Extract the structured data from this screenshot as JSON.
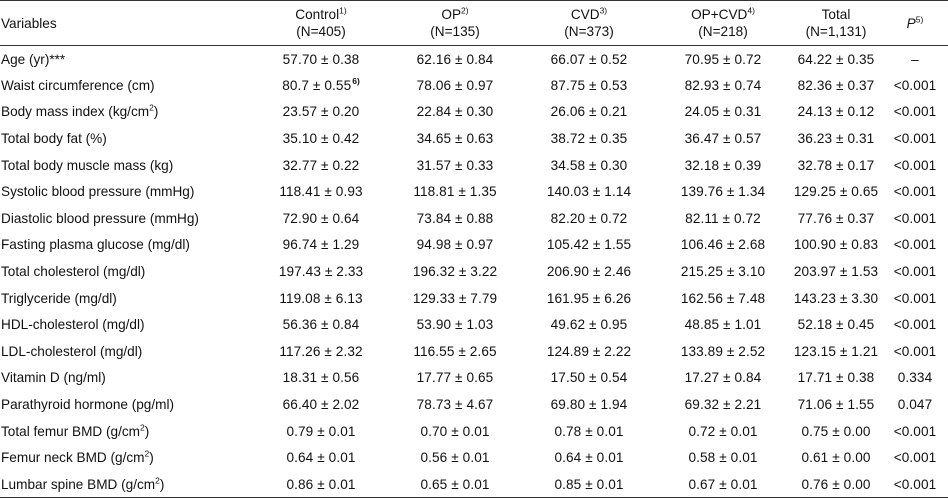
{
  "table": {
    "headers": {
      "variables": "Variables",
      "control": {
        "label": "Control",
        "sup": "1)",
        "n": "(N=405)"
      },
      "op": {
        "label": "OP",
        "sup": "2)",
        "n": "(N=135)"
      },
      "cvd": {
        "label": "CVD",
        "sup": "3)",
        "n": "(N=373)"
      },
      "opcvd": {
        "label": "OP+CVD",
        "sup": "4)",
        "n": "(N=218)"
      },
      "total": {
        "label": "Total",
        "n": "(N=1,131)"
      },
      "p": {
        "label": "P",
        "sup": "5)"
      }
    },
    "rows": [
      {
        "variable": "Age (yr)***",
        "unit_sup": "",
        "control": "57.70 ± 0.38",
        "control_fn": "",
        "op": "62.16 ± 0.84",
        "cvd": "66.07 ± 0.52",
        "opcvd": "70.95 ± 0.72",
        "total": "64.22 ± 0.35",
        "p": "–"
      },
      {
        "variable": "Waist circumference (cm)",
        "unit_sup": "",
        "control": "80.7 ± 0.55",
        "control_fn": "6)",
        "op": "78.06 ± 0.97",
        "cvd": "87.75 ± 0.53",
        "opcvd": "82.93 ± 0.74",
        "total": "82.36 ± 0.37",
        "p": "<0.001"
      },
      {
        "variable": "Body mass index (kg/cm",
        "unit_sup": "2",
        "unit_close": ")",
        "control": "23.57 ± 0.20",
        "control_fn": "",
        "op": "22.84 ± 0.30",
        "cvd": "26.06 ± 0.21",
        "opcvd": "24.05 ± 0.31",
        "total": "24.13 ± 0.12",
        "p": "<0.001"
      },
      {
        "variable": "Total body fat (%)",
        "unit_sup": "",
        "control": "35.10 ± 0.42",
        "control_fn": "",
        "op": "34.65 ± 0.63",
        "cvd": "38.72 ± 0.35",
        "opcvd": "36.47 ± 0.57",
        "total": "36.23 ± 0.31",
        "p": "<0.001"
      },
      {
        "variable": "Total body muscle mass (kg)",
        "unit_sup": "",
        "control": "32.77 ± 0.22",
        "control_fn": "",
        "op": "31.57 ± 0.33",
        "cvd": "34.58 ± 0.30",
        "opcvd": "32.18 ± 0.39",
        "total": "32.78 ± 0.17",
        "p": "<0.001"
      },
      {
        "variable": "Systolic blood pressure (mmHg)",
        "unit_sup": "",
        "control": "118.41 ± 0.93",
        "control_fn": "",
        "op": "118.81 ± 1.35",
        "cvd": "140.03 ± 1.14",
        "opcvd": "139.76 ± 1.34",
        "total": "129.25 ± 0.65",
        "p": "<0.001"
      },
      {
        "variable": "Diastolic blood pressure (mmHg)",
        "unit_sup": "",
        "control": "72.90 ± 0.64",
        "control_fn": "",
        "op": "73.84 ± 0.88",
        "cvd": "82.20 ± 0.72",
        "opcvd": "82.11 ± 0.72",
        "total": "77.76 ± 0.37",
        "p": "<0.001"
      },
      {
        "variable": "Fasting plasma glucose (mg/dl)",
        "unit_sup": "",
        "control": "96.74 ± 1.29",
        "control_fn": "",
        "op": "94.98 ± 0.97",
        "cvd": "105.42 ± 1.55",
        "opcvd": "106.46 ± 2.68",
        "total": "100.90 ± 0.83",
        "p": "<0.001"
      },
      {
        "variable": "Total cholesterol (mg/dl)",
        "unit_sup": "",
        "control": "197.43 ± 2.33",
        "control_fn": "",
        "op": "196.32 ± 3.22",
        "cvd": "206.90 ± 2.46",
        "opcvd": "215.25 ± 3.10",
        "total": "203.97 ± 1.53",
        "p": "<0.001"
      },
      {
        "variable": "Triglyceride (mg/dl)",
        "unit_sup": "",
        "control": "119.08 ± 6.13",
        "control_fn": "",
        "op": "129.33 ± 7.79",
        "cvd": "161.95 ± 6.26",
        "opcvd": "162.56 ± 7.48",
        "total": "143.23 ± 3.30",
        "p": "<0.001"
      },
      {
        "variable": "HDL-cholesterol (mg/dl)",
        "unit_sup": "",
        "control": "56.36 ± 0.84",
        "control_fn": "",
        "op": "53.90 ± 1.03",
        "cvd": "49.62 ± 0.95",
        "opcvd": "48.85 ± 1.01",
        "total": "52.18 ± 0.45",
        "p": "<0.001"
      },
      {
        "variable": "LDL-cholesterol (mg/dl)",
        "unit_sup": "",
        "control": "117.26 ± 2.32",
        "control_fn": "",
        "op": "116.55 ± 2.65",
        "cvd": "124.89 ± 2.22",
        "opcvd": "133.89 ± 2.52",
        "total": "123.15 ± 1.21",
        "p": "<0.001"
      },
      {
        "variable": "Vitamin D (ng/ml)",
        "unit_sup": "",
        "control": "18.31 ± 0.56",
        "control_fn": "",
        "op": "17.77 ± 0.65",
        "cvd": "17.50 ± 0.54",
        "opcvd": "17.27 ± 0.84",
        "total": "17.71 ± 0.38",
        "p": "0.334"
      },
      {
        "variable": "Parathyroid hormone (pg/ml)",
        "unit_sup": "",
        "control": "66.40 ± 2.02",
        "control_fn": "",
        "op": "78.73 ± 4.67",
        "cvd": "69.80 ± 1.94",
        "opcvd": "69.32 ± 2.21",
        "total": "71.06 ± 1.55",
        "p": "0.047"
      },
      {
        "variable": "Total femur BMD (g/cm",
        "unit_sup": "2",
        "unit_close": ")",
        "control": "0.79 ± 0.01",
        "control_fn": "",
        "op": "0.70 ± 0.01",
        "cvd": "0.78 ± 0.01",
        "opcvd": "0.72 ± 0.01",
        "total": "0.75 ± 0.00",
        "p": "<0.001"
      },
      {
        "variable": "Femur neck BMD (g/cm",
        "unit_sup": "2",
        "unit_close": ")",
        "control": "0.64 ± 0.01",
        "control_fn": "",
        "op": "0.56 ± 0.01",
        "cvd": "0.64 ± 0.01",
        "opcvd": "0.58 ± 0.01",
        "total": "0.61 ± 0.00",
        "p": "<0.001"
      },
      {
        "variable": "Lumbar spine BMD (g/cm",
        "unit_sup": "2",
        "unit_close": ")",
        "control": "0.86 ± 0.01",
        "control_fn": "",
        "op": "0.65 ± 0.01",
        "cvd": "0.85 ± 0.01",
        "opcvd": "0.67 ± 0.01",
        "total": "0.76 ± 0.00",
        "p": "<0.001"
      }
    ]
  }
}
